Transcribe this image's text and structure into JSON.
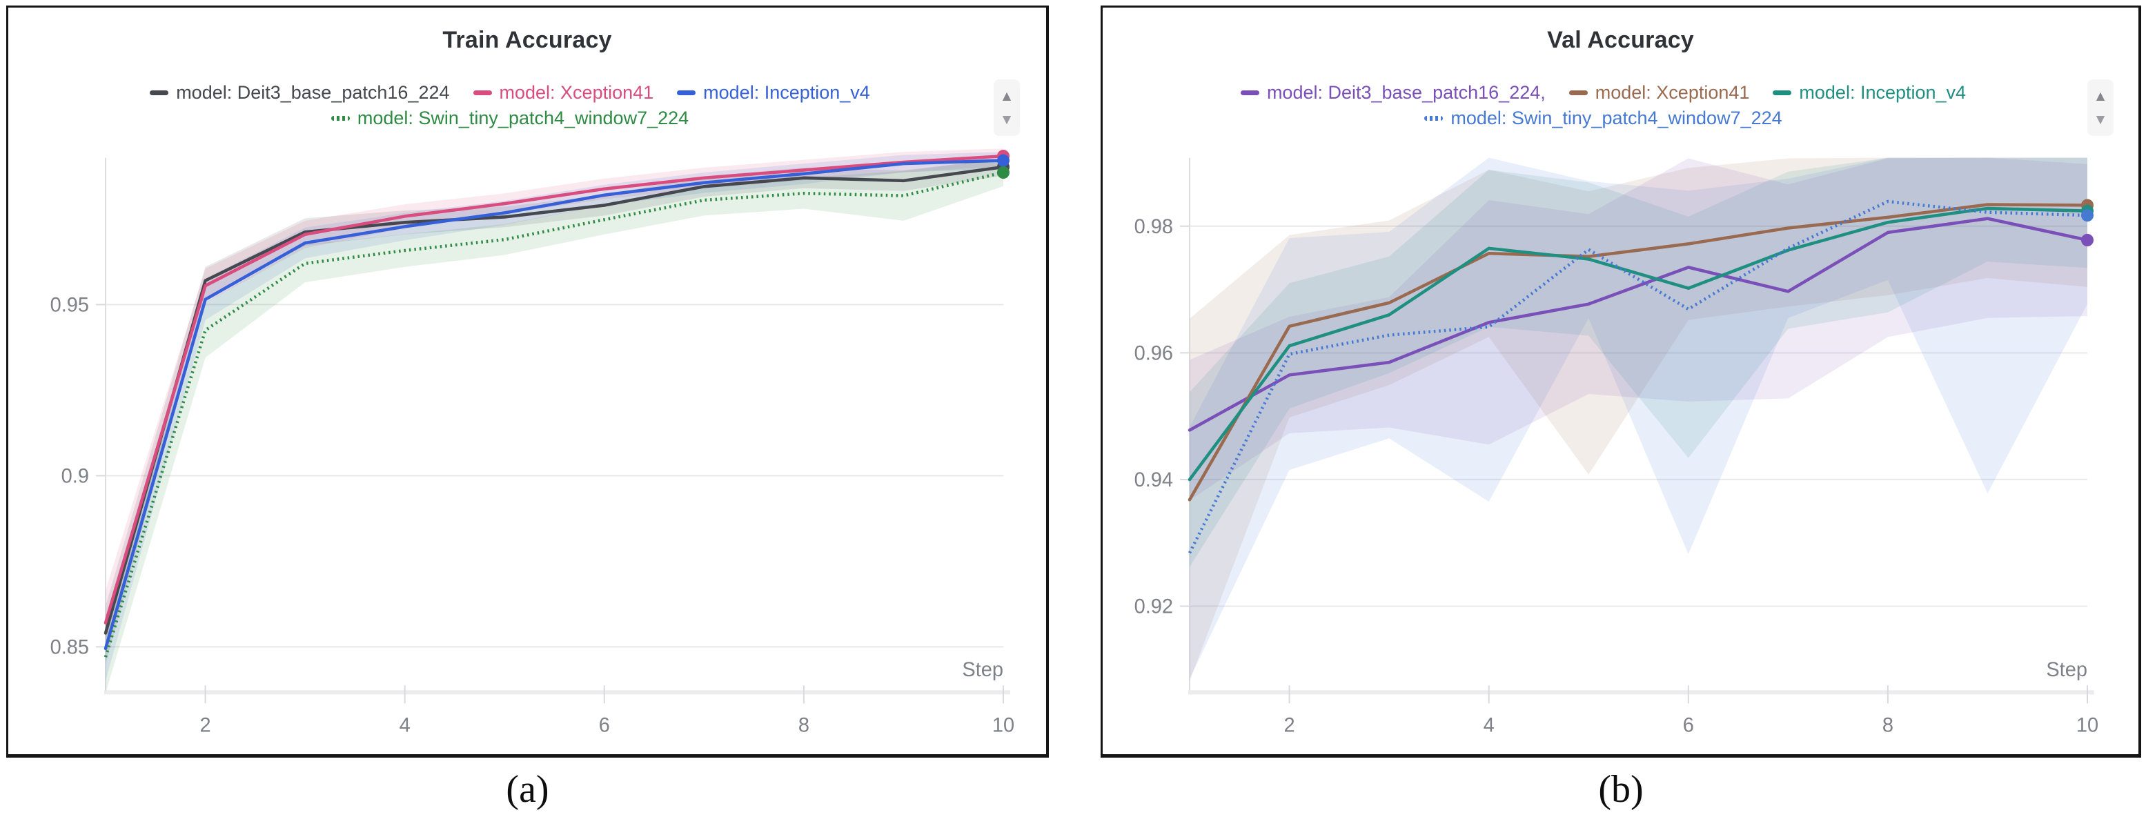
{
  "captions": [
    "(a)",
    "(b)"
  ],
  "scroller": {
    "up_icon": "▲",
    "down_icon": "▼"
  },
  "chart_data": [
    {
      "type": "line",
      "title": "Train Accuracy",
      "xlabel": "Step",
      "ylabel": "",
      "x": [
        1,
        2,
        3,
        4,
        5,
        6,
        7,
        8,
        9,
        10
      ],
      "xticks": [
        2,
        4,
        6,
        8,
        10
      ],
      "yticks": [
        0.85,
        0.9,
        0.95
      ],
      "xlim": [
        1,
        10
      ],
      "ylim": [
        0.8367,
        0.9929
      ],
      "grid": "horizontal",
      "legend_position": "top",
      "series": [
        {
          "name": "model: Deit3_base_patch16_224",
          "color": "#45484e",
          "dash": "solid",
          "values": [
            0.854,
            0.957,
            0.9712,
            0.974,
            0.9756,
            0.979,
            0.9845,
            0.987,
            0.9862,
            0.9902
          ],
          "band_lower": [
            0.845,
            0.952,
            0.9672,
            0.9705,
            0.9726,
            0.976,
            0.9815,
            0.984,
            0.9832,
            0.9877
          ],
          "band_upper": [
            0.862,
            0.961,
            0.9752,
            0.9775,
            0.9786,
            0.982,
            0.9875,
            0.99,
            0.9892,
            0.9927
          ]
        },
        {
          "name": "model: Xception41",
          "color": "#d94c7d",
          "dash": "solid",
          "values": [
            0.857,
            0.9555,
            0.9705,
            0.9758,
            0.9795,
            0.9838,
            0.987,
            0.9893,
            0.9916,
            0.9934
          ],
          "band_lower": [
            0.8475,
            0.9505,
            0.9665,
            0.9723,
            0.9765,
            0.9808,
            0.984,
            0.9863,
            0.9886,
            0.9904
          ],
          "band_upper": [
            0.8665,
            0.9605,
            0.9745,
            0.9793,
            0.9825,
            0.9868,
            0.99,
            0.9923,
            0.9946,
            0.9956
          ]
        },
        {
          "name": "model: Inception_v4",
          "color": "#3560d8",
          "dash": "solid",
          "values": [
            0.8495,
            0.9515,
            0.968,
            0.9728,
            0.9768,
            0.982,
            0.9856,
            0.9882,
            0.9912,
            0.9921
          ],
          "band_lower": [
            0.84,
            0.9455,
            0.9635,
            0.9688,
            0.9733,
            0.979,
            0.9826,
            0.9852,
            0.9887,
            0.9896
          ],
          "band_upper": [
            0.859,
            0.9575,
            0.9725,
            0.9768,
            0.9803,
            0.985,
            0.9886,
            0.9912,
            0.9937,
            0.9946
          ]
        },
        {
          "name": "model: Swin_tiny_patch4_window7_224",
          "color": "#2f8a44",
          "dash": "dotted",
          "values": [
            0.847,
            0.9425,
            0.962,
            0.9658,
            0.969,
            0.9748,
            0.9805,
            0.9825,
            0.9818,
            0.9886
          ],
          "band_lower": [
            0.8365,
            0.9345,
            0.9565,
            0.961,
            0.9645,
            0.9705,
            0.976,
            0.978,
            0.9745,
            0.9846
          ],
          "band_upper": [
            0.8575,
            0.9505,
            0.9675,
            0.9706,
            0.9735,
            0.9791,
            0.985,
            0.987,
            0.9891,
            0.9926
          ]
        }
      ]
    },
    {
      "type": "line",
      "title": "Val Accuracy",
      "xlabel": "Step",
      "ylabel": "",
      "x": [
        1,
        2,
        3,
        4,
        5,
        6,
        7,
        8,
        9,
        10
      ],
      "xticks": [
        2,
        4,
        6,
        8,
        10
      ],
      "yticks": [
        0.92,
        0.94,
        0.96,
        0.98
      ],
      "xlim": [
        1,
        10
      ],
      "ylim": [
        0.9064,
        0.9908
      ],
      "grid": "horizontal",
      "legend_position": "top",
      "series": [
        {
          "name": "model: Deit3_base_patch16_224,",
          "color": "#7a50b8",
          "dash": "solid",
          "values": [
            0.9478,
            0.9565,
            0.9585,
            0.9648,
            0.9677,
            0.9735,
            0.9697,
            0.979,
            0.9812,
            0.9778
          ],
          "band_lower": [
            0.9367,
            0.9473,
            0.9482,
            0.9455,
            0.9535,
            0.9523,
            0.9528,
            0.9625,
            0.9655,
            0.9658
          ],
          "band_upper": [
            0.9589,
            0.9657,
            0.9688,
            0.9841,
            0.9819,
            0.9907,
            0.9866,
            0.9907,
            0.9908,
            0.9898
          ]
        },
        {
          "name": "model: Xception41",
          "color": "#9a6a50",
          "dash": "solid",
          "values": [
            0.9368,
            0.9642,
            0.9679,
            0.9757,
            0.9752,
            0.9772,
            0.9797,
            0.9814,
            0.9834,
            0.9833
          ],
          "band_lower": [
            0.9082,
            0.9498,
            0.9549,
            0.9625,
            0.9408,
            0.9652,
            0.9673,
            0.9691,
            0.9718,
            0.9704
          ],
          "band_upper": [
            0.9654,
            0.9786,
            0.9809,
            0.9889,
            0.9855,
            0.9892,
            0.9907,
            0.9908,
            0.9908,
            0.9908
          ]
        },
        {
          "name": "model: Inception_v4",
          "color": "#1e8f80",
          "dash": "solid",
          "values": [
            0.94,
            0.9611,
            0.966,
            0.9765,
            0.9748,
            0.9702,
            0.9762,
            0.9806,
            0.9828,
            0.9824
          ],
          "band_lower": [
            0.9262,
            0.9512,
            0.9568,
            0.9641,
            0.9627,
            0.9434,
            0.9638,
            0.9664,
            0.9744,
            0.9734
          ],
          "band_upper": [
            0.9538,
            0.971,
            0.9752,
            0.9889,
            0.9869,
            0.9815,
            0.9886,
            0.9908,
            0.9908,
            0.9908
          ]
        },
        {
          "name": "model: Swin_tiny_patch4_window7_224",
          "color": "#4679d2",
          "dash": "dotted",
          "values": [
            0.9284,
            0.9598,
            0.9628,
            0.9641,
            0.9763,
            0.9669,
            0.9765,
            0.9839,
            0.9822,
            0.9817
          ],
          "band_lower": [
            0.9085,
            0.9415,
            0.9465,
            0.9365,
            0.9655,
            0.9282,
            0.9655,
            0.9715,
            0.9378,
            0.9677
          ],
          "band_upper": [
            0.9483,
            0.9781,
            0.9791,
            0.9908,
            0.9871,
            0.9856,
            0.9875,
            0.9908,
            0.9908,
            0.9908
          ]
        }
      ]
    }
  ]
}
